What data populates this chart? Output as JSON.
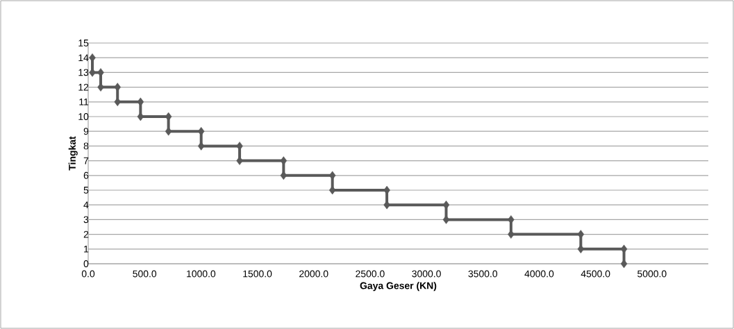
{
  "chart_data": {
    "type": "line",
    "xlabel": "Gaya Geser (KN)",
    "ylabel": "Tingkat",
    "series": [
      {
        "color": "#595959",
        "x": [
          37,
          37,
          111,
          111,
          260,
          260,
          464,
          464,
          712,
          712,
          1002,
          1002,
          1343,
          1343,
          1733,
          1733,
          2166,
          2166,
          2649,
          2649,
          3175,
          3175,
          3750,
          3750,
          4369,
          4369,
          4752,
          4752
        ],
        "values": [
          14,
          13,
          13,
          12,
          12,
          11,
          11,
          10,
          10,
          9,
          9,
          8,
          8,
          7,
          7,
          6,
          6,
          5,
          5,
          4,
          4,
          3,
          3,
          2,
          2,
          1,
          1,
          0
        ]
      }
    ],
    "xlim": [
      0,
      5500
    ],
    "xticks": [
      {
        "value": 0,
        "label": "0.0"
      },
      {
        "value": 500,
        "label": "500.0"
      },
      {
        "value": 1000,
        "label": "1000.0"
      },
      {
        "value": 1500,
        "label": "1500.0"
      },
      {
        "value": 2000,
        "label": "2000.0"
      },
      {
        "value": 2500,
        "label": "2500.0"
      },
      {
        "value": 3000,
        "label": "3000.0"
      },
      {
        "value": 3500,
        "label": "3500.0"
      },
      {
        "value": 4000,
        "label": "4000.0"
      },
      {
        "value": 4500,
        "label": "4500.0"
      },
      {
        "value": 5000,
        "label": "5000.0"
      }
    ],
    "ylim": [
      0,
      15
    ],
    "yticks": [
      0,
      1,
      2,
      3,
      4,
      5,
      6,
      7,
      8,
      9,
      10,
      11,
      12,
      13,
      14,
      15
    ],
    "grid": "y",
    "marker": "diamond",
    "line_style": "solid"
  }
}
